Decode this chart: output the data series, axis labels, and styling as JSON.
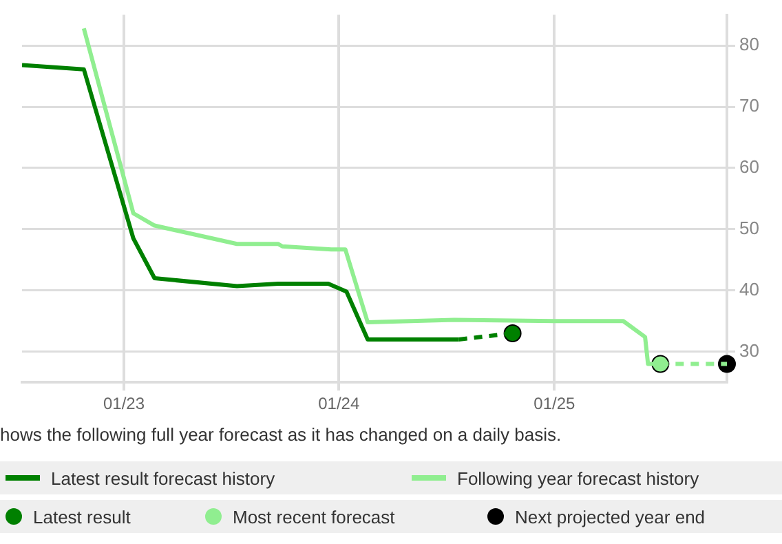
{
  "chart_data": {
    "type": "line",
    "annotations": [
      "hows the following full year forecast as it has changed on a daily basis."
    ],
    "xlim": [
      "2022-07-12",
      "2025-10-21"
    ],
    "xticks": [
      {
        "value": "2023-01-01",
        "label": "01/23"
      },
      {
        "value": "2024-01-01",
        "label": "01/24"
      },
      {
        "value": "2025-01-01",
        "label": "01/25"
      }
    ],
    "ylim": [
      25,
      85
    ],
    "yticks": [
      30,
      40,
      50,
      60,
      70,
      80
    ],
    "grid": true,
    "legend": "bottom",
    "series": [
      {
        "name": "Latest result forecast history",
        "color": "#008000",
        "line_style": "solid",
        "x": [
          "2022-07-12",
          "2022-10-25",
          "2023-01-17",
          "2023-02-22",
          "2023-07-12",
          "2023-09-20",
          "2023-12-14",
          "2024-01-14",
          "2024-02-19",
          "2024-07-23"
        ],
        "values": [
          76.8,
          76.1,
          48.5,
          42.0,
          40.7,
          41.1,
          41.1,
          39.8,
          32.0,
          32.0
        ]
      },
      {
        "name": "Following year forecast history",
        "color": "#90ee90",
        "line_style": "solid",
        "x": [
          "2022-10-25",
          "2023-01-17",
          "2023-02-22",
          "2023-07-12",
          "2023-09-20",
          "2023-09-27",
          "2023-12-19",
          "2024-01-12",
          "2024-02-19",
          "2024-07-15",
          "2025-01-01",
          "2025-04-28",
          "2025-06-04",
          "2025-06-09",
          "2025-06-30"
        ],
        "values": [
          82.8,
          52.6,
          50.6,
          47.6,
          47.6,
          47.2,
          46.7,
          46.7,
          34.8,
          35.2,
          35.0,
          35.0,
          32.4,
          28.0,
          28.0
        ]
      },
      {
        "color": "#008000",
        "line_style": "dashed",
        "x": [
          "2024-07-23",
          "2024-10-22"
        ],
        "values": [
          32.0,
          33.0
        ]
      },
      {
        "color": "#90ee90",
        "line_style": "dashed",
        "x": [
          "2025-06-30",
          "2025-10-21"
        ],
        "values": [
          28.0,
          28.0
        ]
      },
      {
        "name": "Latest result",
        "color": "#008000",
        "type": "scatter",
        "marker": "circle",
        "x": [
          "2024-10-22"
        ],
        "values": [
          33.0
        ]
      },
      {
        "name": "Most recent forecast",
        "color": "#90ee90",
        "type": "scatter",
        "marker": "circle",
        "x": [
          "2025-06-30"
        ],
        "values": [
          28.0
        ]
      },
      {
        "name": "Next projected year end",
        "color": "#000000",
        "type": "scatter",
        "marker": "circle",
        "x": [
          "2025-10-21"
        ],
        "values": [
          28.0
        ]
      }
    ]
  }
}
